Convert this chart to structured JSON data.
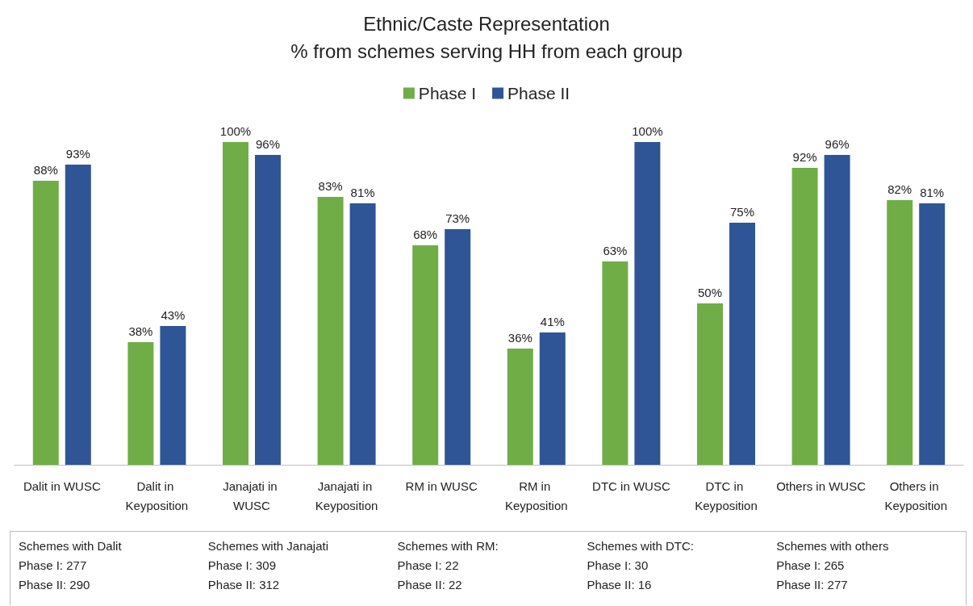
{
  "chart_data": {
    "type": "bar",
    "title": "Ethnic/Caste Representation",
    "subtitle": "% from schemes serving HH from each group",
    "categories": [
      "Dalit in WUSC",
      "Dalit in Keyposition",
      "Janajati in WUSC",
      "Janajati in Keyposition",
      "RM in WUSC",
      "RM in Keyposition",
      "DTC in WUSC",
      "DTC in Keyposition",
      "Others in WUSC",
      "Others in Keyposition"
    ],
    "series": [
      {
        "name": "Phase I",
        "color": "#70ad47",
        "values": [
          88,
          38,
          100,
          83,
          68,
          36,
          63,
          50,
          92,
          82
        ],
        "value_labels": [
          "88%",
          "38%",
          "100%",
          "83%",
          "68%",
          "36%",
          "63%",
          "50%",
          "92%",
          "82%"
        ]
      },
      {
        "name": "Phase II",
        "color": "#2f5597",
        "values": [
          93,
          43,
          96,
          81,
          73,
          41,
          100,
          75,
          96,
          81
        ],
        "value_labels": [
          "93%",
          "43%",
          "96%",
          "81%",
          "73%",
          "41%",
          "100%",
          "75%",
          "96%",
          "81%"
        ]
      }
    ],
    "legend": "top",
    "grid": false,
    "annotations": [
      "Schemes with Dalit\nPhase I: 277\nPhase II: 290",
      "Schemes with Janajati\nPhase I: 309\nPhase II: 312",
      "Schemes with RM:\nPhase I: 22\nPhase II: 22",
      "Schemes with DTC:\nPhase I: 30\nPhase II: 16",
      "Schemes with others\nPhase I: 265\nPhase II: 277"
    ]
  }
}
